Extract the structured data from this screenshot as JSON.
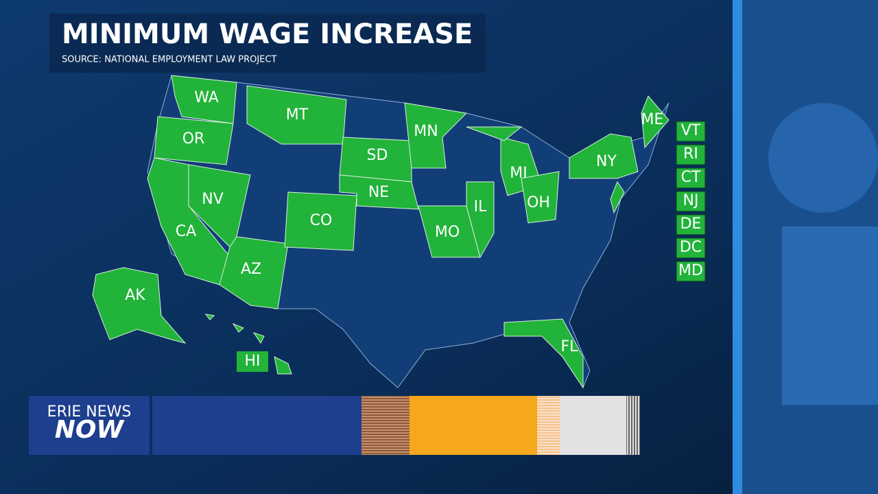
{
  "header": {
    "title": "MINIMUM WAGE INCREASE",
    "source": "SOURCE: NATIONAL EMPLOYMENT LAW PROJECT"
  },
  "map": {
    "state_labels": [
      "WA",
      "OR",
      "MT",
      "MN",
      "SD",
      "NE",
      "NV",
      "CA",
      "CO",
      "AZ",
      "MO",
      "IL",
      "MI",
      "OH",
      "NY",
      "ME",
      "AK",
      "HI",
      "FL"
    ],
    "side_labels": [
      "VT",
      "RI",
      "CT",
      "NJ",
      "DE",
      "DC",
      "MD"
    ]
  },
  "logo": {
    "line1": "ERIE NEWS",
    "line2": "NOW"
  }
}
